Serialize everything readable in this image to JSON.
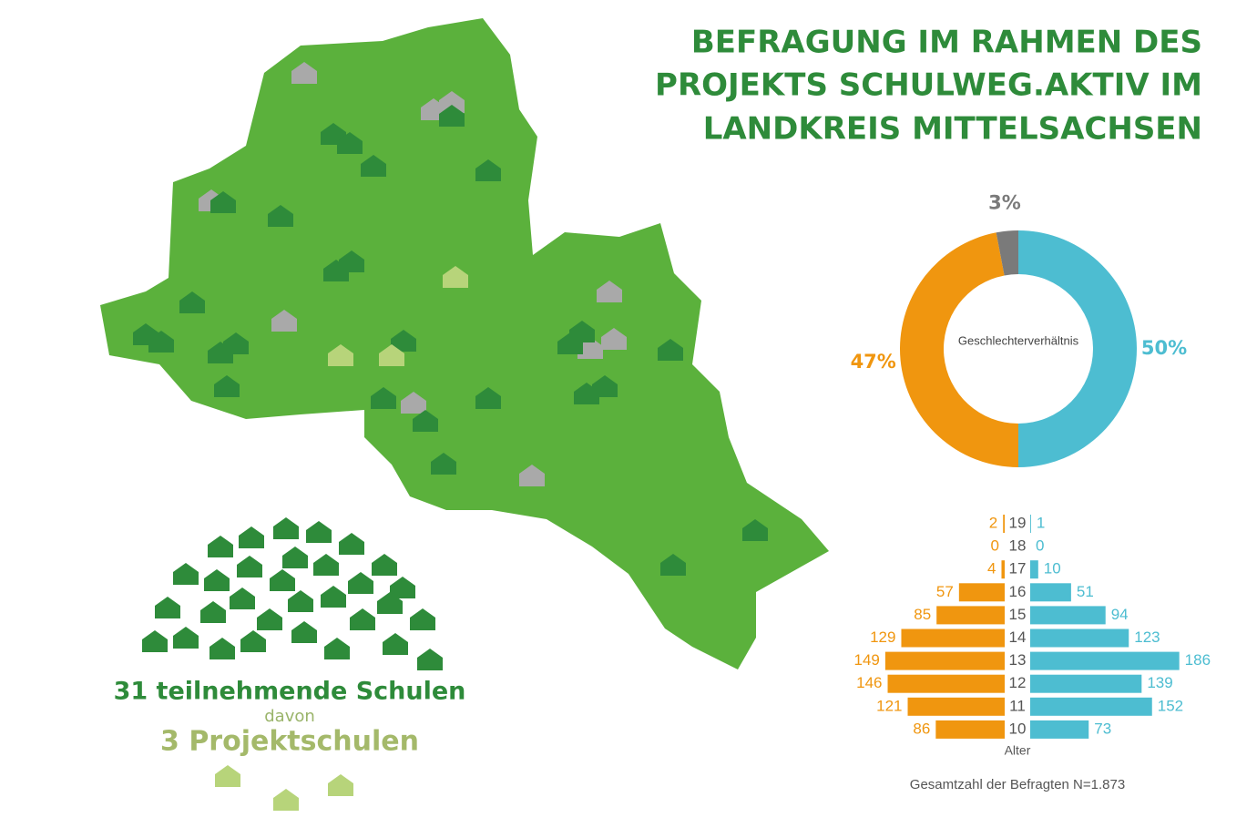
{
  "title": [
    "BEFRAGUNG IM RAHMEN DES",
    "PROJEKTS SCHULWEG.AKTIV IM",
    "LANDKREIS MITTELSACHSEN"
  ],
  "schools": {
    "participants": "31 teilnehmende Schulen",
    "of_which": "davon",
    "project_schools": "3 Projektschulen"
  },
  "chart_data": [
    {
      "type": "donut",
      "center_label": "Geschlechterverhältnis",
      "values": [
        50,
        47,
        3
      ],
      "value_labels": [
        "50%",
        "47%",
        "3%"
      ],
      "colors": [
        "#4dbdd1",
        "#f0960f",
        "#7a7a7a"
      ]
    },
    {
      "type": "pyramid",
      "categories": [
        "19",
        "18",
        "17",
        "16",
        "15",
        "14",
        "13",
        "12",
        "11",
        "10"
      ],
      "x_label": "Alter",
      "note": "Gesamtzahl der Befragten N=1.873",
      "series": [
        {
          "color": "#f0960f",
          "values": [
            2,
            0,
            4,
            57,
            85,
            129,
            149,
            146,
            121,
            86
          ]
        },
        {
          "color": "#4dbdd1",
          "values": [
            1,
            0,
            10,
            51,
            94,
            123,
            186,
            139,
            152,
            73
          ]
        }
      ]
    }
  ]
}
